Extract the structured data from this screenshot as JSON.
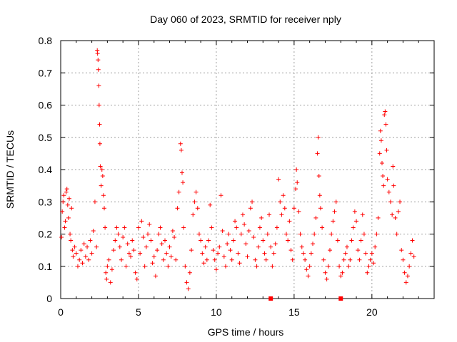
{
  "chart_data": {
    "type": "scatter",
    "title": "Day 060 of 2023, SRMTID for receiver nply",
    "xlabel": "GPS time / hours",
    "ylabel": "SRMTID / TECUs",
    "xlim": [
      0,
      24
    ],
    "ylim": [
      0,
      0.8
    ],
    "xticks": [
      0,
      5,
      10,
      15,
      20
    ],
    "yticks": [
      0,
      0.1,
      0.2,
      0.3,
      0.4,
      0.5,
      0.6,
      0.7,
      0.8
    ],
    "xtick_labels": [
      "0",
      "5",
      "10",
      "15",
      "20"
    ],
    "ytick_labels": [
      "0",
      "0.1",
      "0.2",
      "0.3",
      "0.4",
      "0.5",
      "0.6",
      "0.7",
      "0.8"
    ],
    "grid": true,
    "series": [
      {
        "name": "SRMTID",
        "marker": "plus",
        "color": "#ff0000",
        "points": [
          [
            0.05,
            0.19
          ],
          [
            0.1,
            0.27
          ],
          [
            0.15,
            0.3
          ],
          [
            0.2,
            0.32
          ],
          [
            0.25,
            0.22
          ],
          [
            0.3,
            0.24
          ],
          [
            0.35,
            0.33
          ],
          [
            0.4,
            0.34
          ],
          [
            0.45,
            0.29
          ],
          [
            0.5,
            0.25
          ],
          [
            0.55,
            0.31
          ],
          [
            0.6,
            0.2
          ],
          [
            0.65,
            0.18
          ],
          [
            0.7,
            0.28
          ],
          [
            0.75,
            0.15
          ],
          [
            0.8,
            0.13
          ],
          [
            0.9,
            0.16
          ],
          [
            1.0,
            0.14
          ],
          [
            1.1,
            0.1
          ],
          [
            1.2,
            0.12
          ],
          [
            1.3,
            0.15
          ],
          [
            1.4,
            0.11
          ],
          [
            1.5,
            0.17
          ],
          [
            1.6,
            0.13
          ],
          [
            1.7,
            0.16
          ],
          [
            1.8,
            0.12
          ],
          [
            1.9,
            0.18
          ],
          [
            2.0,
            0.14
          ],
          [
            2.1,
            0.21
          ],
          [
            2.2,
            0.3
          ],
          [
            2.3,
            0.16
          ],
          [
            2.35,
            0.77
          ],
          [
            2.37,
            0.76
          ],
          [
            2.4,
            0.74
          ],
          [
            2.42,
            0.71
          ],
          [
            2.45,
            0.66
          ],
          [
            2.47,
            0.6
          ],
          [
            2.5,
            0.54
          ],
          [
            2.52,
            0.48
          ],
          [
            2.55,
            0.41
          ],
          [
            2.6,
            0.35
          ],
          [
            2.65,
            0.4
          ],
          [
            2.7,
            0.38
          ],
          [
            2.75,
            0.32
          ],
          [
            2.8,
            0.28
          ],
          [
            2.85,
            0.22
          ],
          [
            2.9,
            0.08
          ],
          [
            2.95,
            0.06
          ],
          [
            3.0,
            0.1
          ],
          [
            3.1,
            0.12
          ],
          [
            3.2,
            0.05
          ],
          [
            3.3,
            0.09
          ],
          [
            3.4,
            0.15
          ],
          [
            3.5,
            0.18
          ],
          [
            3.6,
            0.22
          ],
          [
            3.7,
            0.2
          ],
          [
            3.8,
            0.16
          ],
          [
            3.9,
            0.12
          ],
          [
            4.0,
            0.19
          ],
          [
            4.1,
            0.22
          ],
          [
            4.2,
            0.1
          ],
          [
            4.3,
            0.17
          ],
          [
            4.4,
            0.14
          ],
          [
            4.5,
            0.13
          ],
          [
            4.6,
            0.18
          ],
          [
            4.7,
            0.15
          ],
          [
            4.8,
            0.08
          ],
          [
            4.9,
            0.06
          ],
          [
            5.0,
            0.22
          ],
          [
            5.1,
            0.14
          ],
          [
            5.2,
            0.24
          ],
          [
            5.3,
            0.19
          ],
          [
            5.4,
            0.1
          ],
          [
            5.5,
            0.16
          ],
          [
            5.6,
            0.2
          ],
          [
            5.7,
            0.23
          ],
          [
            5.8,
            0.18
          ],
          [
            5.9,
            0.11
          ],
          [
            6.0,
            0.13
          ],
          [
            6.1,
            0.07
          ],
          [
            6.2,
            0.15
          ],
          [
            6.3,
            0.2
          ],
          [
            6.4,
            0.22
          ],
          [
            6.5,
            0.17
          ],
          [
            6.6,
            0.12
          ],
          [
            6.7,
            0.18
          ],
          [
            6.8,
            0.14
          ],
          [
            6.9,
            0.1
          ],
          [
            7.0,
            0.16
          ],
          [
            7.1,
            0.13
          ],
          [
            7.2,
            0.21
          ],
          [
            7.3,
            0.19
          ],
          [
            7.4,
            0.12
          ],
          [
            7.5,
            0.28
          ],
          [
            7.6,
            0.33
          ],
          [
            7.7,
            0.48
          ],
          [
            7.75,
            0.46
          ],
          [
            7.8,
            0.39
          ],
          [
            7.85,
            0.36
          ],
          [
            7.9,
            0.22
          ],
          [
            8.0,
            0.1
          ],
          [
            8.1,
            0.05
          ],
          [
            8.2,
            0.03
          ],
          [
            8.3,
            0.08
          ],
          [
            8.4,
            0.15
          ],
          [
            8.5,
            0.26
          ],
          [
            8.6,
            0.3
          ],
          [
            8.7,
            0.33
          ],
          [
            8.8,
            0.28
          ],
          [
            8.9,
            0.2
          ],
          [
            9.0,
            0.18
          ],
          [
            9.1,
            0.14
          ],
          [
            9.2,
            0.11
          ],
          [
            9.3,
            0.16
          ],
          [
            9.4,
            0.12
          ],
          [
            9.5,
            0.18
          ],
          [
            9.6,
            0.29
          ],
          [
            9.7,
            0.22
          ],
          [
            9.8,
            0.15
          ],
          [
            9.9,
            0.12
          ],
          [
            10.0,
            0.09
          ],
          [
            10.1,
            0.14
          ],
          [
            10.2,
            0.16
          ],
          [
            10.3,
            0.32
          ],
          [
            10.4,
            0.21
          ],
          [
            10.5,
            0.13
          ],
          [
            10.6,
            0.1
          ],
          [
            10.7,
            0.17
          ],
          [
            10.8,
            0.2
          ],
          [
            10.9,
            0.15
          ],
          [
            11.0,
            0.12
          ],
          [
            11.1,
            0.18
          ],
          [
            11.2,
            0.24
          ],
          [
            11.3,
            0.22
          ],
          [
            11.4,
            0.14
          ],
          [
            11.5,
            0.11
          ],
          [
            11.6,
            0.2
          ],
          [
            11.7,
            0.26
          ],
          [
            11.8,
            0.23
          ],
          [
            11.9,
            0.17
          ],
          [
            12.0,
            0.13
          ],
          [
            12.1,
            0.21
          ],
          [
            12.2,
            0.28
          ],
          [
            12.3,
            0.3
          ],
          [
            12.4,
            0.19
          ],
          [
            12.5,
            0.12
          ],
          [
            12.6,
            0.1
          ],
          [
            12.7,
            0.16
          ],
          [
            12.8,
            0.22
          ],
          [
            12.9,
            0.25
          ],
          [
            13.0,
            0.18
          ],
          [
            13.1,
            0.14
          ],
          [
            13.2,
            0.12
          ],
          [
            13.3,
            0.2
          ],
          [
            13.4,
            0.26
          ],
          [
            13.5,
            0.16
          ],
          [
            13.6,
            0.1
          ],
          [
            13.7,
            0.14
          ],
          [
            13.8,
            0.17
          ],
          [
            13.9,
            0.22
          ],
          [
            14.0,
            0.37
          ],
          [
            14.1,
            0.3
          ],
          [
            14.2,
            0.26
          ],
          [
            14.3,
            0.32
          ],
          [
            14.4,
            0.28
          ],
          [
            14.5,
            0.2
          ],
          [
            14.6,
            0.18
          ],
          [
            14.7,
            0.24
          ],
          [
            14.8,
            0.15
          ],
          [
            14.9,
            0.12
          ],
          [
            15.0,
            0.28
          ],
          [
            15.1,
            0.34
          ],
          [
            15.15,
            0.4
          ],
          [
            15.2,
            0.36
          ],
          [
            15.3,
            0.27
          ],
          [
            15.4,
            0.2
          ],
          [
            15.5,
            0.16
          ],
          [
            15.6,
            0.14
          ],
          [
            15.7,
            0.12
          ],
          [
            15.8,
            0.09
          ],
          [
            15.9,
            0.07
          ],
          [
            16.0,
            0.1
          ],
          [
            16.1,
            0.14
          ],
          [
            16.2,
            0.17
          ],
          [
            16.3,
            0.2
          ],
          [
            16.4,
            0.25
          ],
          [
            16.5,
            0.45
          ],
          [
            16.55,
            0.5
          ],
          [
            16.6,
            0.38
          ],
          [
            16.65,
            0.32
          ],
          [
            16.7,
            0.28
          ],
          [
            16.8,
            0.22
          ],
          [
            16.9,
            0.12
          ],
          [
            17.0,
            0.08
          ],
          [
            17.1,
            0.06
          ],
          [
            17.2,
            0.1
          ],
          [
            17.3,
            0.15
          ],
          [
            17.4,
            0.2
          ],
          [
            17.5,
            0.24
          ],
          [
            17.6,
            0.27
          ],
          [
            17.7,
            0.3
          ],
          [
            17.8,
            0.18
          ],
          [
            17.9,
            0.1
          ],
          [
            18.0,
            0.07
          ],
          [
            18.1,
            0.08
          ],
          [
            18.2,
            0.12
          ],
          [
            18.3,
            0.14
          ],
          [
            18.4,
            0.16
          ],
          [
            18.5,
            0.1
          ],
          [
            18.6,
            0.12
          ],
          [
            18.7,
            0.18
          ],
          [
            18.8,
            0.22
          ],
          [
            18.9,
            0.27
          ],
          [
            19.0,
            0.24
          ],
          [
            19.1,
            0.15
          ],
          [
            19.2,
            0.12
          ],
          [
            19.3,
            0.18
          ],
          [
            19.4,
            0.26
          ],
          [
            19.5,
            0.2
          ],
          [
            19.6,
            0.14
          ],
          [
            19.7,
            0.08
          ],
          [
            19.8,
            0.1
          ],
          [
            19.9,
            0.12
          ],
          [
            20.0,
            0.14
          ],
          [
            20.1,
            0.11
          ],
          [
            20.2,
            0.16
          ],
          [
            20.3,
            0.2
          ],
          [
            20.4,
            0.25
          ],
          [
            20.5,
            0.45
          ],
          [
            20.55,
            0.52
          ],
          [
            20.6,
            0.49
          ],
          [
            20.65,
            0.42
          ],
          [
            20.7,
            0.38
          ],
          [
            20.75,
            0.35
          ],
          [
            20.8,
            0.57
          ],
          [
            20.85,
            0.58
          ],
          [
            20.9,
            0.54
          ],
          [
            20.95,
            0.46
          ],
          [
            21.0,
            0.37
          ],
          [
            21.1,
            0.33
          ],
          [
            21.2,
            0.3
          ],
          [
            21.3,
            0.26
          ],
          [
            21.35,
            0.41
          ],
          [
            21.4,
            0.35
          ],
          [
            21.5,
            0.25
          ],
          [
            21.6,
            0.2
          ],
          [
            21.7,
            0.27
          ],
          [
            21.8,
            0.3
          ],
          [
            21.9,
            0.15
          ],
          [
            22.0,
            0.12
          ],
          [
            22.1,
            0.08
          ],
          [
            22.2,
            0.05
          ],
          [
            22.3,
            0.07
          ],
          [
            22.4,
            0.1
          ],
          [
            22.5,
            0.14
          ],
          [
            22.6,
            0.18
          ],
          [
            22.7,
            0.13
          ]
        ]
      }
    ],
    "x_markers": [
      13.5,
      18.0
    ]
  }
}
